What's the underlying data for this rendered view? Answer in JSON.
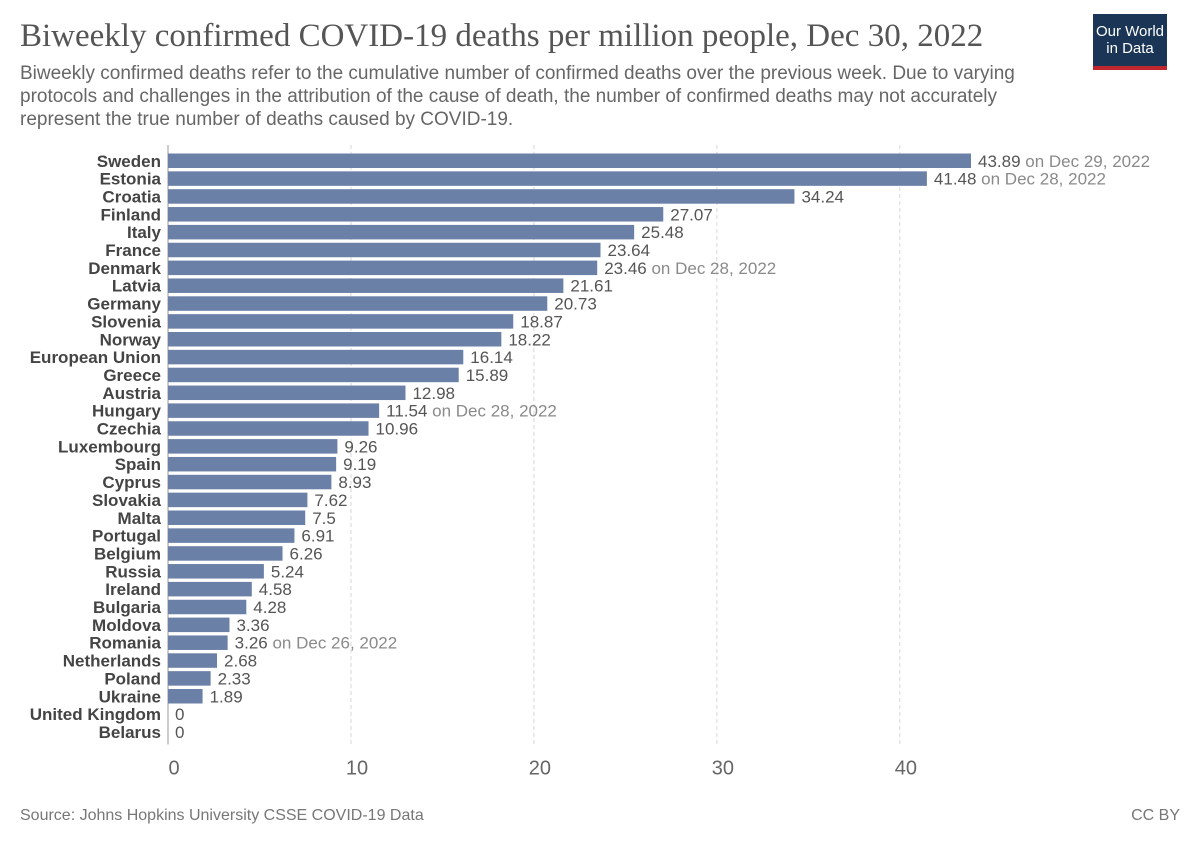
{
  "header": {
    "title": "Biweekly confirmed COVID-19 deaths per million people, Dec 30, 2022",
    "subtitle": "Biweekly confirmed deaths refer to the cumulative number of confirmed deaths over the previous week. Due to varying protocols and challenges in the attribution of the cause of death, the number of confirmed deaths may not accurately represent the true number of deaths caused by COVID-19.",
    "logo_line1": "Our World",
    "logo_line2": "in Data"
  },
  "footer": {
    "source": "Source: Johns Hopkins University CSSE COVID-19 Data",
    "license": "CC BY"
  },
  "colors": {
    "bar": "#6b80a7",
    "logo_bg": "#1a3556",
    "logo_accent": "#c0262d"
  },
  "chart_data": {
    "type": "bar",
    "orientation": "horizontal",
    "categories": [
      "Sweden",
      "Estonia",
      "Croatia",
      "Finland",
      "Italy",
      "France",
      "Denmark",
      "Latvia",
      "Germany",
      "Slovenia",
      "Norway",
      "European Union",
      "Greece",
      "Austria",
      "Hungary",
      "Czechia",
      "Luxembourg",
      "Spain",
      "Cyprus",
      "Slovakia",
      "Malta",
      "Portugal",
      "Belgium",
      "Russia",
      "Ireland",
      "Bulgaria",
      "Moldova",
      "Romania",
      "Netherlands",
      "Poland",
      "Ukraine",
      "United Kingdom",
      "Belarus"
    ],
    "values": [
      43.89,
      41.48,
      34.24,
      27.07,
      25.48,
      23.64,
      23.46,
      21.61,
      20.73,
      18.87,
      18.22,
      16.14,
      15.89,
      12.98,
      11.54,
      10.96,
      9.26,
      9.19,
      8.93,
      7.62,
      7.5,
      6.91,
      6.26,
      5.24,
      4.58,
      4.28,
      3.36,
      3.26,
      2.68,
      2.33,
      1.89,
      0,
      0
    ],
    "value_labels": [
      "43.89",
      "41.48",
      "34.24",
      "27.07",
      "25.48",
      "23.64",
      "23.46",
      "21.61",
      "20.73",
      "18.87",
      "18.22",
      "16.14",
      "15.89",
      "12.98",
      "11.54",
      "10.96",
      "9.26",
      "9.19",
      "8.93",
      "7.62",
      "7.5",
      "6.91",
      "6.26",
      "5.24",
      "4.58",
      "4.28",
      "3.36",
      "3.26",
      "2.68",
      "2.33",
      "1.89",
      "0",
      "0"
    ],
    "date_notes": [
      "on Dec 29, 2022",
      "on Dec 28, 2022",
      "",
      "",
      "",
      "",
      "on Dec 28, 2022",
      "",
      "",
      "",
      "",
      "",
      "",
      "",
      "on Dec 28, 2022",
      "",
      "",
      "",
      "",
      "",
      "",
      "",
      "",
      "",
      "",
      "",
      "",
      "on Dec 26, 2022",
      "",
      "",
      "",
      "",
      ""
    ],
    "xticks": [
      0,
      10,
      20,
      30,
      40
    ],
    "xlim": [
      0,
      43.89
    ],
    "grid": "vertical dashed"
  }
}
